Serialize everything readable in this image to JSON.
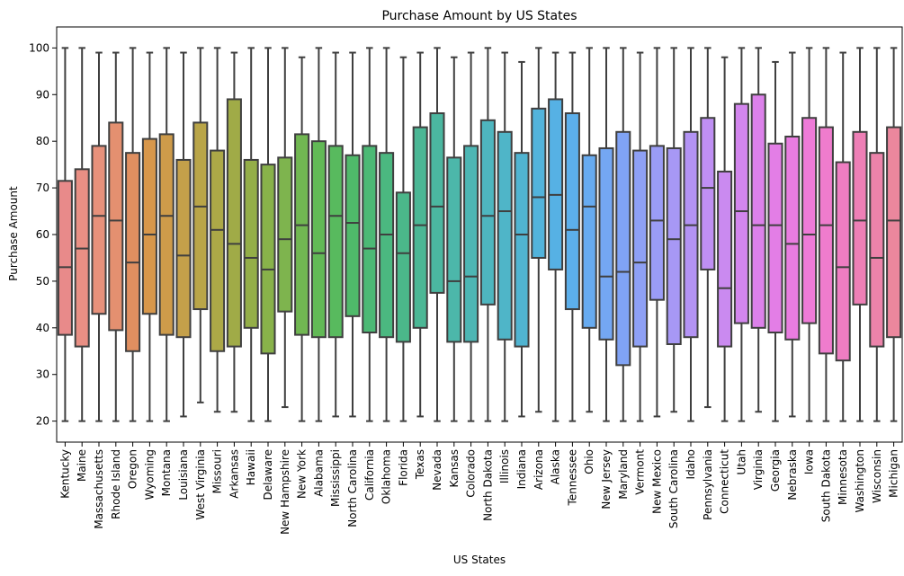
{
  "chart_data": {
    "type": "box",
    "title": "Purchase Amount by US States",
    "xlabel": "US States",
    "ylabel": "Purchase Amount",
    "ylim": [
      15.5,
      104.5
    ],
    "yticks": [
      20,
      30,
      40,
      50,
      60,
      70,
      80,
      90,
      100
    ],
    "grid": false,
    "categories": [
      "Kentucky",
      "Maine",
      "Massachusetts",
      "Rhode Island",
      "Oregon",
      "Wyoming",
      "Montana",
      "Louisiana",
      "West Virginia",
      "Missouri",
      "Arkansas",
      "Hawaii",
      "Delaware",
      "New Hampshire",
      "New York",
      "Alabama",
      "Mississippi",
      "North Carolina",
      "California",
      "Oklahoma",
      "Florida",
      "Texas",
      "Nevada",
      "Kansas",
      "Colorado",
      "North Dakota",
      "Illinois",
      "Indiana",
      "Arizona",
      "Alaska",
      "Tennessee",
      "Ohio",
      "New Jersey",
      "Maryland",
      "Vermont",
      "New Mexico",
      "South Carolina",
      "Idaho",
      "Pennsylvania",
      "Connecticut",
      "Utah",
      "Virginia",
      "Georgia",
      "Nebraska",
      "Iowa",
      "South Dakota",
      "Minnesota",
      "Washington",
      "Wisconsin",
      "Michigan"
    ],
    "colors": [
      "#e88a8a",
      "#e98f84",
      "#e7917b",
      "#e49070",
      "#e08f60",
      "#d7974b",
      "#ce9b4a",
      "#c4a04a",
      "#b9a548",
      "#aca847",
      "#a0ab47",
      "#94ae48",
      "#88b24a",
      "#7eb44e",
      "#71b752",
      "#62b956",
      "#58ba5e",
      "#4fba6a",
      "#4cb975",
      "#4bb880",
      "#4bb78a",
      "#4bb795",
      "#4bb7a0",
      "#4cb7aa",
      "#4db6b4",
      "#4eb6bf",
      "#4fb5c8",
      "#50b4d1",
      "#52b3db",
      "#56b1e4",
      "#5cafeb",
      "#67abf0",
      "#74a7f3",
      "#80a3f5",
      "#8ea0f5",
      "#9a9cf6",
      "#a798f5",
      "#b393f4",
      "#bf8ff3",
      "#ca8af0",
      "#d386ee",
      "#dc81ea",
      "#e37ee6",
      "#e97ce0",
      "#ee7bd8",
      "#ef7ccd",
      "#ef7dc2",
      "#ee7fb6",
      "#ec83aa",
      "#eb879d"
    ],
    "boxes": [
      {
        "min": 20,
        "q1": 38.5,
        "median": 53,
        "q3": 71.5,
        "max": 100
      },
      {
        "min": 20,
        "q1": 36,
        "median": 57,
        "q3": 74,
        "max": 100
      },
      {
        "min": 20,
        "q1": 43,
        "median": 64,
        "q3": 79,
        "max": 99
      },
      {
        "min": 20,
        "q1": 39.5,
        "median": 63,
        "q3": 84,
        "max": 99
      },
      {
        "min": 20,
        "q1": 35,
        "median": 54,
        "q3": 77.5,
        "max": 100
      },
      {
        "min": 20,
        "q1": 43,
        "median": 60,
        "q3": 80.5,
        "max": 99
      },
      {
        "min": 20,
        "q1": 38.5,
        "median": 64,
        "q3": 81.5,
        "max": 100
      },
      {
        "min": 21,
        "q1": 38,
        "median": 55.5,
        "q3": 76,
        "max": 99
      },
      {
        "min": 24,
        "q1": 44,
        "median": 66,
        "q3": 84,
        "max": 100
      },
      {
        "min": 22,
        "q1": 35,
        "median": 61,
        "q3": 78,
        "max": 100
      },
      {
        "min": 22,
        "q1": 36,
        "median": 58,
        "q3": 89,
        "max": 99
      },
      {
        "min": 20,
        "q1": 40,
        "median": 55,
        "q3": 76,
        "max": 100
      },
      {
        "min": 20,
        "q1": 34.5,
        "median": 52.5,
        "q3": 75,
        "max": 100
      },
      {
        "min": 23,
        "q1": 43.5,
        "median": 59,
        "q3": 76.5,
        "max": 100
      },
      {
        "min": 20,
        "q1": 38.5,
        "median": 62,
        "q3": 81.5,
        "max": 98
      },
      {
        "min": 20,
        "q1": 38,
        "median": 56,
        "q3": 80,
        "max": 100
      },
      {
        "min": 21,
        "q1": 38,
        "median": 64,
        "q3": 79,
        "max": 99
      },
      {
        "min": 21,
        "q1": 42.5,
        "median": 62.5,
        "q3": 77,
        "max": 99
      },
      {
        "min": 20,
        "q1": 39,
        "median": 57,
        "q3": 79,
        "max": 100
      },
      {
        "min": 20,
        "q1": 38,
        "median": 60,
        "q3": 77.5,
        "max": 100
      },
      {
        "min": 20,
        "q1": 37,
        "median": 56,
        "q3": 69,
        "max": 98
      },
      {
        "min": 21,
        "q1": 40,
        "median": 62,
        "q3": 83,
        "max": 99
      },
      {
        "min": 20,
        "q1": 47.5,
        "median": 66,
        "q3": 86,
        "max": 100
      },
      {
        "min": 20,
        "q1": 37,
        "median": 50,
        "q3": 76.5,
        "max": 98
      },
      {
        "min": 20,
        "q1": 37,
        "median": 51,
        "q3": 79,
        "max": 99
      },
      {
        "min": 20,
        "q1": 45,
        "median": 64,
        "q3": 84.5,
        "max": 100
      },
      {
        "min": 20,
        "q1": 37.5,
        "median": 65,
        "q3": 82,
        "max": 99
      },
      {
        "min": 21,
        "q1": 36,
        "median": 60,
        "q3": 77.5,
        "max": 97
      },
      {
        "min": 22,
        "q1": 55,
        "median": 68,
        "q3": 87,
        "max": 100
      },
      {
        "min": 20,
        "q1": 52.5,
        "median": 68.5,
        "q3": 89,
        "max": 99
      },
      {
        "min": 20,
        "q1": 44,
        "median": 61,
        "q3": 86,
        "max": 99
      },
      {
        "min": 22,
        "q1": 40,
        "median": 66,
        "q3": 77,
        "max": 100
      },
      {
        "min": 20,
        "q1": 37.5,
        "median": 51,
        "q3": 78.5,
        "max": 100
      },
      {
        "min": 20,
        "q1": 32,
        "median": 52,
        "q3": 82,
        "max": 100
      },
      {
        "min": 20,
        "q1": 36,
        "median": 54,
        "q3": 78,
        "max": 99
      },
      {
        "min": 21,
        "q1": 46,
        "median": 63,
        "q3": 79,
        "max": 100
      },
      {
        "min": 22,
        "q1": 36.5,
        "median": 59,
        "q3": 78.5,
        "max": 100
      },
      {
        "min": 20,
        "q1": 38,
        "median": 62,
        "q3": 82,
        "max": 100
      },
      {
        "min": 23,
        "q1": 52.5,
        "median": 70,
        "q3": 85,
        "max": 100
      },
      {
        "min": 20,
        "q1": 36,
        "median": 48.5,
        "q3": 73.5,
        "max": 98
      },
      {
        "min": 20,
        "q1": 41,
        "median": 65,
        "q3": 88,
        "max": 100
      },
      {
        "min": 22,
        "q1": 40,
        "median": 62,
        "q3": 90,
        "max": 100
      },
      {
        "min": 20,
        "q1": 39,
        "median": 62,
        "q3": 79.5,
        "max": 97
      },
      {
        "min": 21,
        "q1": 37.5,
        "median": 58,
        "q3": 81,
        "max": 99
      },
      {
        "min": 20,
        "q1": 41,
        "median": 60,
        "q3": 85,
        "max": 100
      },
      {
        "min": 20,
        "q1": 34.5,
        "median": 62,
        "q3": 83,
        "max": 100
      },
      {
        "min": 20,
        "q1": 33,
        "median": 53,
        "q3": 75.5,
        "max": 99
      },
      {
        "min": 20,
        "q1": 45,
        "median": 63,
        "q3": 82,
        "max": 100
      },
      {
        "min": 20,
        "q1": 36,
        "median": 55,
        "q3": 77.5,
        "max": 100
      },
      {
        "min": 20,
        "q1": 38,
        "median": 63,
        "q3": 83,
        "max": 100
      }
    ]
  }
}
